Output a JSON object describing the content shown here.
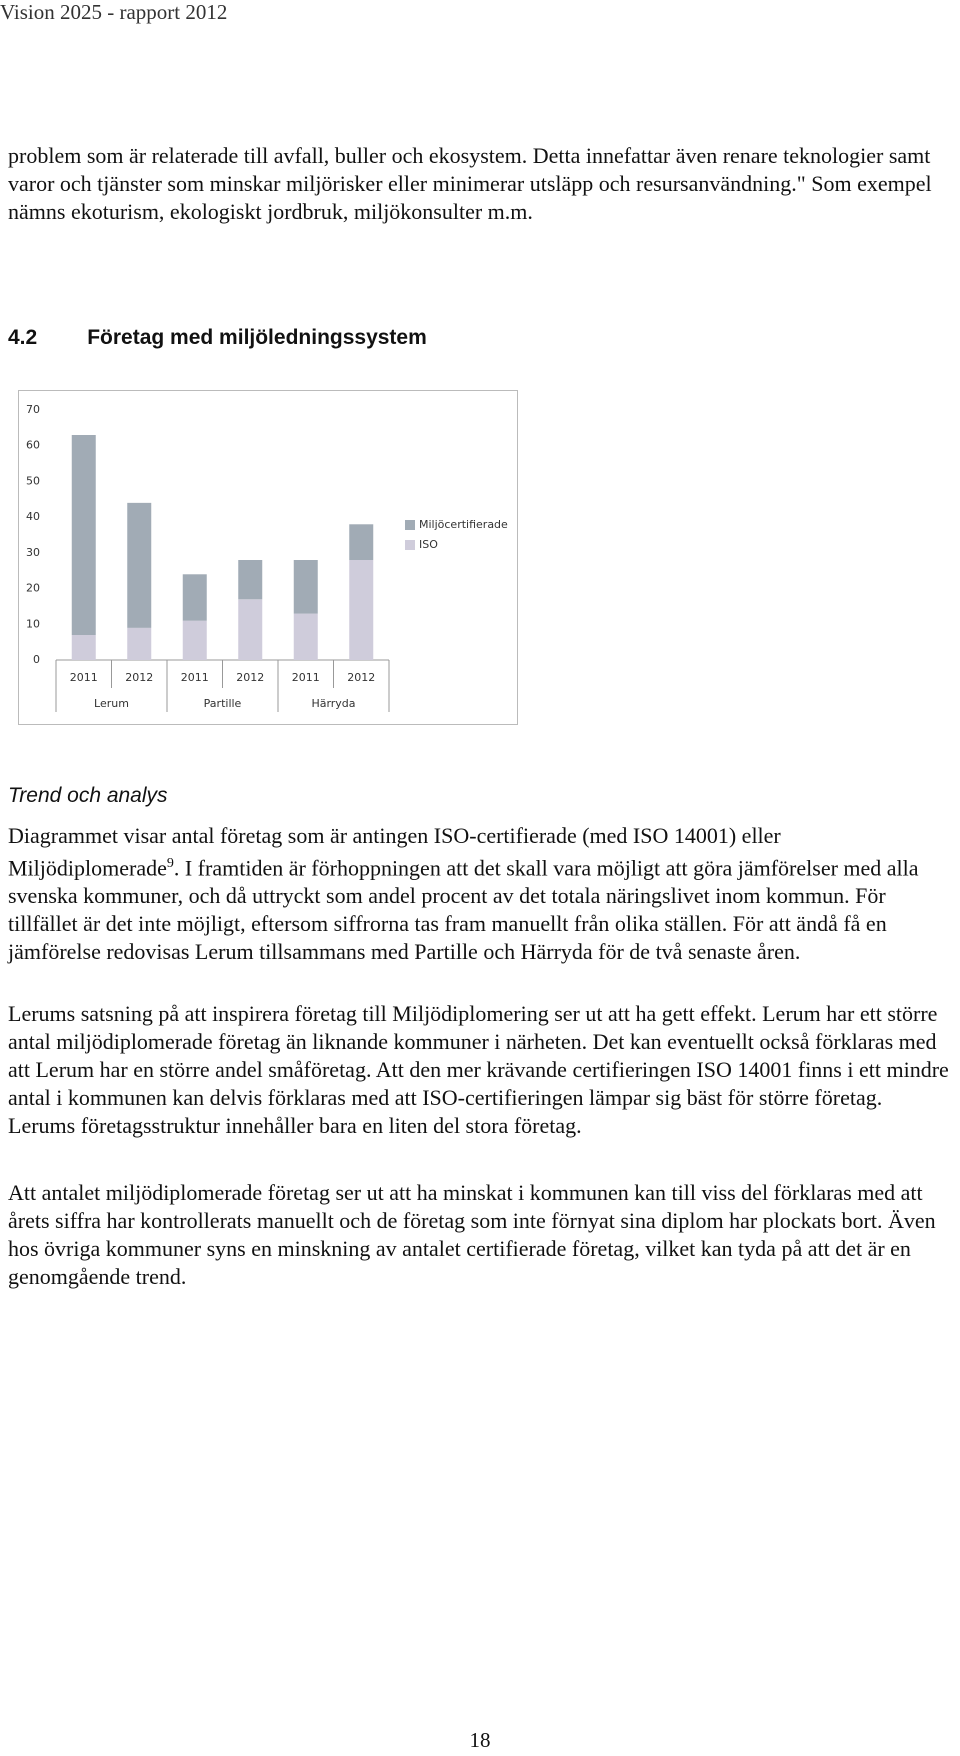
{
  "header": {
    "title": "Vision 2025 - rapport 2012"
  },
  "paragraphs_top": [
    "problem som är relaterade till avfall, buller och ekosystem. Detta innefattar även renare teknologier samt varor och tjänster som minskar miljörisker eller minimerar utsläpp och resursanvändning.\" Som exempel nämns ekoturism, ekologiskt jordbruk, miljökonsulter m.m."
  ],
  "section": {
    "number": "4.2",
    "title": "Företag med miljöledningssystem"
  },
  "chart_data": {
    "type": "stacked-bar",
    "categories": [
      "2011",
      "2012",
      "2011",
      "2012",
      "2011",
      "2012"
    ],
    "groups": [
      "Lerum",
      "Partille",
      "Härryda"
    ],
    "series": [
      {
        "name": "ISO",
        "color": "#cfccdb",
        "values": [
          7,
          9,
          11,
          17,
          13,
          28
        ]
      },
      {
        "name": "Miljöcertifierade",
        "color": "#a1abb5",
        "values": [
          56,
          35,
          13,
          11,
          15,
          10
        ]
      }
    ],
    "ylim": [
      0,
      70
    ],
    "yticks": [
      0,
      10,
      20,
      30,
      40,
      50,
      60,
      70
    ],
    "grid": false
  },
  "subheading": "Trend och analys",
  "paragraph_footnote": {
    "before": "Diagrammet visar antal företag som är antingen ISO-certifierade (med ISO 14001) eller Miljödiplomerade",
    "footnote": "9",
    "after": ". I framtiden är förhoppningen att det skall vara möjligt att göra jämförelser med alla svenska kommuner, och då uttryckt som andel procent av det totala näringslivet inom kommun. För tillfället är det inte möjligt, eftersom siffrorna tas fram manuellt från olika ställen. För att ändå få en jämförelse redovisas Lerum tillsammans med Partille och Härryda för de två senaste åren."
  },
  "paragraphs": [
    "Lerums satsning på att inspirera företag till Miljödiplomering ser ut att ha gett effekt. Lerum har ett större antal miljödiplomerade företag än liknande kommuner i närheten. Det kan eventuellt också förklaras med att Lerum har en större andel småföretag. Att den mer krävande certifieringen ISO 14001 finns i ett mindre antal i kommunen kan delvis förklaras med att ISO-certifieringen lämpar sig bäst för större företag. Lerums företagsstruktur innehåller bara en liten del stora företag.",
    "Att antalet miljödiplomerade företag ser ut att ha minskat i kommunen kan till viss del förklaras med att årets siffra har kontrollerats manuellt och de företag som inte förnyat sina diplom har plockats bort. Även hos övriga kommuner syns en minskning av antalet certifierade företag, vilket kan tyda på att det är en genomgående trend."
  ],
  "page_number": "18"
}
